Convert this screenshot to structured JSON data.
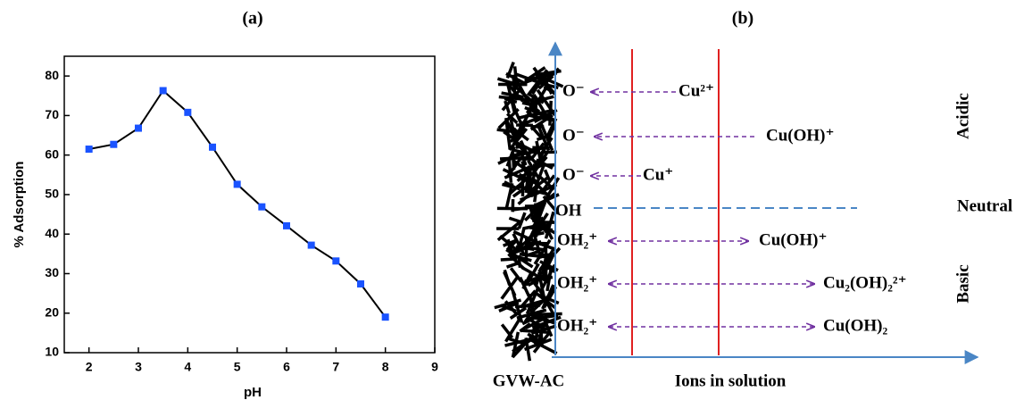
{
  "chart_data": {
    "type": "line",
    "title": "(a)",
    "x_label": "pH",
    "y_label": "% Adsorption",
    "x": [
      2,
      2.5,
      3,
      3.5,
      4,
      4.5,
      5,
      5.5,
      6,
      6.5,
      7,
      7.5,
      8
    ],
    "series": [
      {
        "values": [
          61.5,
          62.7,
          66.8,
          76.3,
          70.8,
          62,
          52.6,
          46.9,
          42.1,
          37.2,
          33.2,
          27.4,
          19
        ],
        "color": "#1a53ff",
        "line_color": "#000000"
      }
    ],
    "xlim": [
      1.5,
      9
    ],
    "xticks": [
      2,
      3,
      4,
      5,
      6,
      7,
      8,
      9
    ],
    "ylim": [
      10,
      85
    ],
    "yticks": [
      10,
      20,
      30,
      40,
      50,
      60,
      70,
      80
    ]
  },
  "diagram": {
    "title": "(b)",
    "surface_label": "GVW-AC",
    "axis_label": "Ions in solution",
    "rows": [
      {
        "surface": "O⁻",
        "ion": "Cu²⁺"
      },
      {
        "surface": "O⁻",
        "ion": "Cu(OH)⁺"
      },
      {
        "surface": "O⁻",
        "ion": "Cu⁺"
      },
      {
        "surface": "OH"
      },
      {
        "surface": "OH₂⁺",
        "ion": "Cu(OH)⁺"
      },
      {
        "surface": "OH₂⁺",
        "ion": "Cu₂(OH)₂²⁺"
      },
      {
        "surface": "OH₂⁺",
        "ion": "Cu(OH)₂"
      }
    ],
    "regions": [
      "Acidic",
      "Neutral",
      "Basic"
    ]
  }
}
